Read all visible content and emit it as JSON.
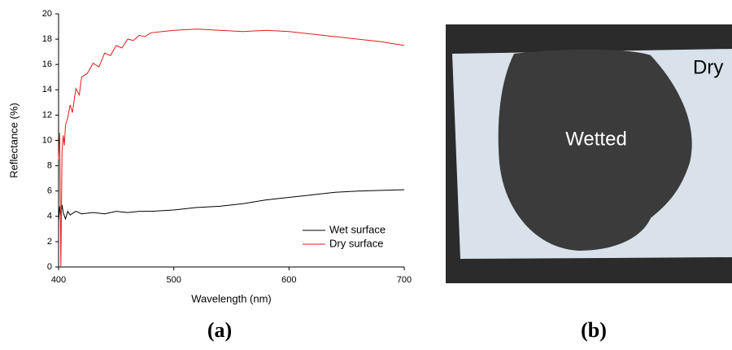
{
  "chart_data": {
    "type": "line",
    "xlabel": "Wavelength (nm)",
    "ylabel": "Reflectance (%)",
    "xlim": [
      400,
      700
    ],
    "xticks": [
      400,
      500,
      600,
      700
    ],
    "ylim": [
      0,
      20
    ],
    "yticks": [
      0,
      2,
      4,
      6,
      8,
      10,
      12,
      14,
      16,
      18,
      20
    ],
    "legend": "lower right",
    "series": [
      {
        "name": "Wet surface",
        "color": "#000000",
        "x": [
          400,
          401,
          402,
          403,
          404,
          406,
          408,
          410,
          415,
          420,
          430,
          440,
          450,
          460,
          470,
          480,
          500,
          520,
          540,
          560,
          580,
          600,
          620,
          640,
          660,
          680,
          700
        ],
        "values": [
          3.6,
          4.8,
          4.1,
          4.9,
          4.3,
          3.8,
          4.4,
          4.1,
          4.4,
          4.2,
          4.3,
          4.2,
          4.4,
          4.3,
          4.4,
          4.4,
          4.5,
          4.7,
          4.8,
          5.0,
          5.3,
          5.5,
          5.7,
          5.9,
          6.0,
          6.05,
          6.1
        ]
      },
      {
        "name": "Dry surface",
        "color": "#e41a1c",
        "x": [
          400,
          401,
          402,
          403,
          404,
          405,
          406,
          408,
          410,
          412,
          415,
          418,
          420,
          425,
          430,
          435,
          440,
          445,
          450,
          455,
          460,
          465,
          470,
          475,
          480,
          490,
          500,
          520,
          540,
          560,
          580,
          600,
          620,
          640,
          660,
          680,
          700
        ],
        "values": [
          8.5,
          10.6,
          0,
          9.2,
          10.4,
          9.6,
          11.2,
          11.8,
          12.8,
          12.2,
          14.1,
          13.6,
          15.0,
          15.3,
          16.1,
          15.8,
          16.9,
          16.7,
          17.5,
          17.3,
          18.0,
          17.9,
          18.3,
          18.2,
          18.5,
          18.6,
          18.7,
          18.8,
          18.7,
          18.6,
          18.7,
          18.6,
          18.4,
          18.2,
          18.0,
          17.8,
          17.5
        ]
      }
    ]
  },
  "panels": {
    "a": {
      "caption": "(a)"
    },
    "b": {
      "caption": "(b)",
      "labels": [
        "Wetted",
        "Dry"
      ]
    }
  }
}
